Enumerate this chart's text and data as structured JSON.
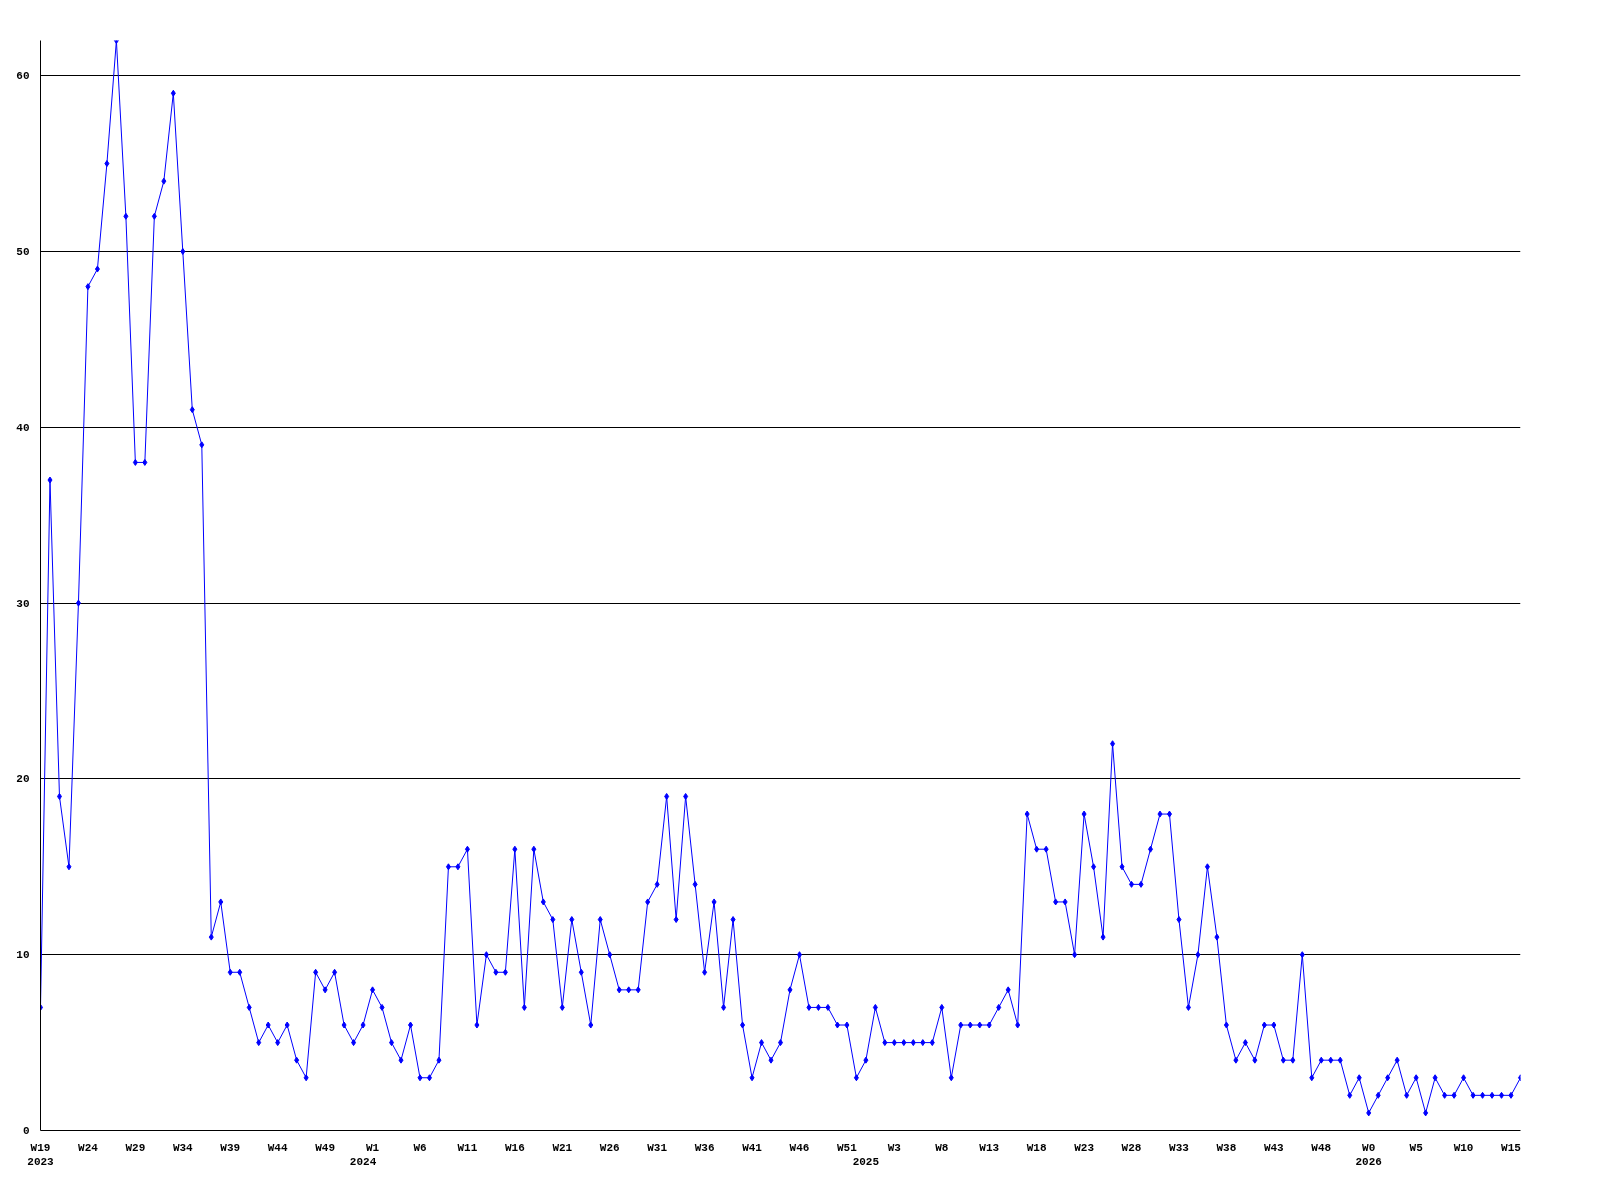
{
  "chart_data": {
    "type": "line",
    "categories": [
      "W19\n2023",
      null,
      null,
      null,
      null,
      "W24",
      null,
      null,
      null,
      null,
      "W29",
      null,
      null,
      null,
      null,
      "W34",
      null,
      null,
      null,
      null,
      "W39",
      null,
      null,
      null,
      null,
      "W44",
      null,
      null,
      null,
      null,
      "W49",
      null,
      null,
      null,
      "\n2024",
      "W1",
      null,
      null,
      null,
      null,
      "W6",
      null,
      null,
      null,
      null,
      "W11",
      null,
      null,
      null,
      null,
      "W16",
      null,
      null,
      null,
      null,
      "W21",
      null,
      null,
      null,
      null,
      "W26",
      null,
      null,
      null,
      null,
      "W31",
      null,
      null,
      null,
      null,
      "W36",
      null,
      null,
      null,
      null,
      "W41",
      null,
      null,
      null,
      null,
      "W46",
      null,
      null,
      null,
      null,
      "W51",
      null,
      "\n2025",
      null,
      null,
      "W3",
      null,
      null,
      null,
      null,
      "W8",
      null,
      null,
      null,
      null,
      "W13",
      null,
      null,
      null,
      null,
      "W18",
      null,
      null,
      null,
      null,
      "W23",
      null,
      null,
      null,
      null,
      "W28",
      null,
      null,
      null,
      null,
      "W33",
      null,
      null,
      null,
      null,
      "W38",
      null,
      null,
      null,
      null,
      "W43",
      null,
      null,
      null,
      null,
      "W48",
      null,
      null,
      null,
      null,
      "W0\n2026",
      null,
      null,
      null,
      null,
      "W5",
      null,
      null,
      null,
      null,
      "W10",
      null,
      null,
      null,
      null,
      "W15",
      null
    ],
    "series": [
      {
        "color": "#0000ff",
        "values": [
          7,
          37,
          19,
          15,
          30,
          48,
          49,
          55,
          62,
          52,
          38,
          38,
          52,
          54,
          59,
          50,
          41,
          39,
          11,
          13,
          9,
          9,
          7,
          5,
          6,
          5,
          6,
          4,
          3,
          9,
          8,
          9,
          6,
          5,
          6,
          8,
          7,
          5,
          4,
          6,
          3,
          3,
          4,
          15,
          15,
          16,
          6,
          10,
          9,
          9,
          16,
          7,
          16,
          13,
          12,
          7,
          12,
          9,
          6,
          12,
          10,
          8,
          8,
          8,
          13,
          14,
          19,
          12,
          19,
          14,
          9,
          13,
          7,
          12,
          6,
          3,
          5,
          4,
          5,
          8,
          10,
          7,
          7,
          7,
          6,
          6,
          3,
          4,
          7,
          5,
          5,
          5,
          5,
          5,
          5,
          7,
          3,
          6,
          6,
          6,
          6,
          7,
          8,
          6,
          18,
          16,
          16,
          13,
          13,
          10,
          18,
          15,
          11,
          22,
          15,
          14,
          14,
          16,
          18,
          18,
          12,
          7,
          10,
          15,
          11,
          6,
          4,
          5,
          4,
          6,
          6,
          4,
          4,
          10,
          3,
          4,
          4,
          4,
          2,
          3,
          1,
          2,
          3,
          4,
          2,
          3,
          1,
          3,
          2,
          2,
          3,
          2,
          2,
          2,
          2,
          2,
          3
        ]
      }
    ],
    "ylim": [
      0,
      62
    ],
    "yticks": [
      0,
      10,
      20,
      30,
      40,
      50,
      60
    ],
    "grid": "y",
    "marker": "diamond",
    "line_style": "solid"
  }
}
